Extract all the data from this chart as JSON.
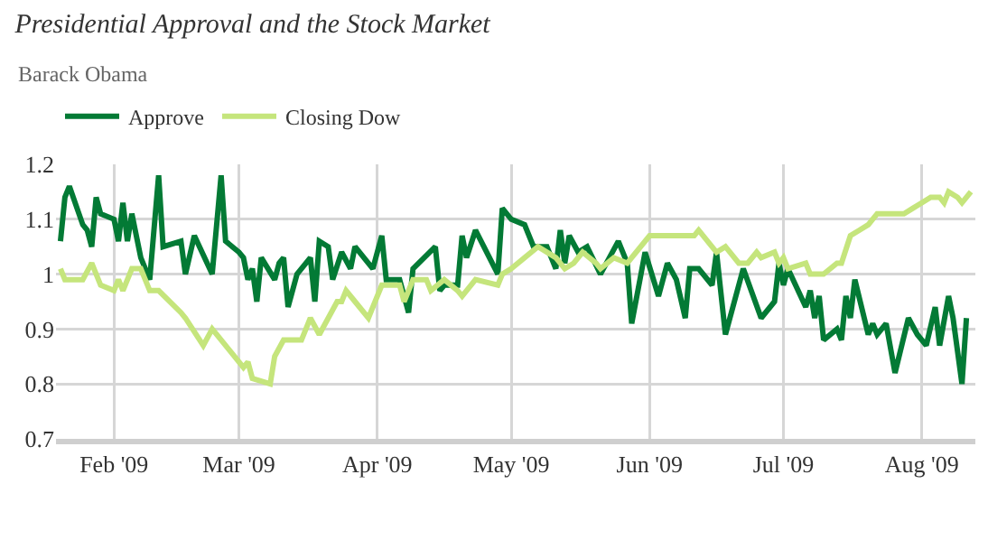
{
  "chart_data": {
    "type": "line",
    "title": "Presidential Approval and the Stock Market",
    "subtitle": "Barack Obama",
    "xlim": [
      "2009-01-19",
      "2009-08-13"
    ],
    "xticks": [
      {
        "value": "2009-02-01",
        "label": "Feb '09"
      },
      {
        "value": "2009-03-01",
        "label": "Mar '09"
      },
      {
        "value": "2009-04-01",
        "label": "Apr '09"
      },
      {
        "value": "2009-05-01",
        "label": "May '09"
      },
      {
        "value": "2009-06-01",
        "label": "Jun '09"
      },
      {
        "value": "2009-07-01",
        "label": "Jul '09"
      },
      {
        "value": "2009-08-01",
        "label": "Aug '09"
      }
    ],
    "ylim": [
      0.7,
      1.2
    ],
    "yticks": [
      0.7,
      0.8,
      0.9,
      1,
      1.1,
      1.2
    ],
    "grid": true,
    "legend": "top left",
    "marker": "none",
    "line_style": "solid",
    "series": [
      {
        "name": "Approve",
        "color": "#037a35",
        "x": [
          "2009-01-20",
          "2009-01-21",
          "2009-01-22",
          "2009-01-25",
          "2009-01-26",
          "2009-01-27",
          "2009-01-28",
          "2009-01-29",
          "2009-02-01",
          "2009-02-02",
          "2009-02-03",
          "2009-02-04",
          "2009-02-05",
          "2009-02-07",
          "2009-02-09",
          "2009-02-11",
          "2009-02-12",
          "2009-02-16",
          "2009-02-17",
          "2009-02-19",
          "2009-02-23",
          "2009-02-25",
          "2009-02-26",
          "2009-03-01",
          "2009-03-02",
          "2009-03-03",
          "2009-03-04",
          "2009-03-05",
          "2009-03-06",
          "2009-03-09",
          "2009-03-10",
          "2009-03-11",
          "2009-03-12",
          "2009-03-14",
          "2009-03-17",
          "2009-03-18",
          "2009-03-19",
          "2009-03-21",
          "2009-03-22",
          "2009-03-24",
          "2009-03-26",
          "2009-03-27",
          "2009-03-31",
          "2009-04-02",
          "2009-04-03",
          "2009-04-06",
          "2009-04-08",
          "2009-04-09",
          "2009-04-14",
          "2009-04-15",
          "2009-04-16",
          "2009-04-19",
          "2009-04-20",
          "2009-04-21",
          "2009-04-23",
          "2009-04-28",
          "2009-04-29",
          "2009-05-01",
          "2009-05-04",
          "2009-05-06",
          "2009-05-09",
          "2009-05-11",
          "2009-05-12",
          "2009-05-13",
          "2009-05-14",
          "2009-05-16",
          "2009-05-18",
          "2009-05-21",
          "2009-05-25",
          "2009-05-27",
          "2009-05-28",
          "2009-05-31",
          "2009-06-03",
          "2009-06-05",
          "2009-06-07",
          "2009-06-09",
          "2009-06-10",
          "2009-06-12",
          "2009-06-15",
          "2009-06-16",
          "2009-06-18",
          "2009-06-22",
          "2009-06-26",
          "2009-06-29",
          "2009-06-30",
          "2009-07-01",
          "2009-07-02",
          "2009-07-06",
          "2009-07-07",
          "2009-07-08",
          "2009-07-09",
          "2009-07-10",
          "2009-07-13",
          "2009-07-14",
          "2009-07-15",
          "2009-07-16",
          "2009-07-17",
          "2009-07-20",
          "2009-07-21",
          "2009-07-22",
          "2009-07-24",
          "2009-07-26",
          "2009-07-29",
          "2009-07-31",
          "2009-08-02",
          "2009-08-04",
          "2009-08-05",
          "2009-08-07",
          "2009-08-08",
          "2009-08-10",
          "2009-08-11"
        ],
        "values": [
          1.06,
          1.14,
          1.16,
          1.09,
          1.08,
          1.05,
          1.14,
          1.11,
          1.1,
          1.06,
          1.13,
          1.06,
          1.11,
          1.03,
          0.99,
          1.18,
          1.05,
          1.06,
          1.0,
          1.07,
          1.0,
          1.18,
          1.06,
          1.04,
          1.03,
          0.99,
          1.01,
          0.95,
          1.03,
          0.99,
          1.02,
          1.03,
          0.94,
          1.0,
          1.03,
          0.95,
          1.06,
          1.05,
          0.99,
          1.04,
          1.01,
          1.05,
          1.01,
          1.07,
          0.99,
          0.99,
          0.93,
          1.01,
          1.05,
          0.97,
          0.98,
          0.98,
          1.07,
          1.03,
          1.08,
          1.0,
          1.12,
          1.1,
          1.09,
          1.05,
          1.05,
          1.01,
          1.08,
          1.02,
          1.07,
          1.04,
          1.05,
          1.0,
          1.06,
          1.02,
          0.91,
          1.04,
          0.96,
          1.02,
          0.99,
          0.92,
          1.01,
          1.01,
          0.98,
          1.04,
          0.89,
          1.01,
          0.92,
          0.95,
          1.02,
          0.98,
          1.01,
          0.94,
          0.97,
          0.92,
          0.96,
          0.88,
          0.9,
          0.88,
          0.96,
          0.92,
          0.99,
          0.89,
          0.91,
          0.89,
          0.91,
          0.82,
          0.92,
          0.89,
          0.87,
          0.94,
          0.87,
          0.96,
          0.92,
          0.8,
          0.92
        ]
      },
      {
        "name": "Closing Dow",
        "color": "#c5e57c",
        "x": [
          "2009-01-20",
          "2009-01-21",
          "2009-01-25",
          "2009-01-27",
          "2009-01-29",
          "2009-02-01",
          "2009-02-02",
          "2009-02-03",
          "2009-02-05",
          "2009-02-07",
          "2009-02-09",
          "2009-02-11",
          "2009-02-16",
          "2009-02-17",
          "2009-02-21",
          "2009-02-23",
          "2009-02-24",
          "2009-02-27",
          "2009-03-02",
          "2009-03-03",
          "2009-03-04",
          "2009-03-08",
          "2009-03-09",
          "2009-03-11",
          "2009-03-15",
          "2009-03-17",
          "2009-03-19",
          "2009-03-23",
          "2009-03-24",
          "2009-03-25",
          "2009-03-27",
          "2009-03-30",
          "2009-04-02",
          "2009-04-06",
          "2009-04-07",
          "2009-04-09",
          "2009-04-12",
          "2009-04-13",
          "2009-04-16",
          "2009-04-19",
          "2009-04-20",
          "2009-04-21",
          "2009-04-23",
          "2009-04-28",
          "2009-04-29",
          "2009-05-01",
          "2009-05-04",
          "2009-05-07",
          "2009-05-11",
          "2009-05-13",
          "2009-05-15",
          "2009-05-17",
          "2009-05-20",
          "2009-05-21",
          "2009-05-24",
          "2009-05-27",
          "2009-06-01",
          "2009-06-05",
          "2009-06-11",
          "2009-06-12",
          "2009-06-16",
          "2009-06-18",
          "2009-06-21",
          "2009-06-23",
          "2009-06-25",
          "2009-06-26",
          "2009-06-29",
          "2009-06-30",
          "2009-07-01",
          "2009-07-02",
          "2009-07-06",
          "2009-07-07",
          "2009-07-10",
          "2009-07-13",
          "2009-07-14",
          "2009-07-16",
          "2009-07-18",
          "2009-07-20",
          "2009-07-22",
          "2009-07-25",
          "2009-07-28",
          "2009-07-30",
          "2009-08-03",
          "2009-08-05",
          "2009-08-06",
          "2009-08-07",
          "2009-08-09",
          "2009-08-10",
          "2009-08-12"
        ],
        "values": [
          1.01,
          0.99,
          0.99,
          1.02,
          0.98,
          0.97,
          0.99,
          0.97,
          1.01,
          1.01,
          0.97,
          0.97,
          0.93,
          0.92,
          0.87,
          0.9,
          0.89,
          0.86,
          0.83,
          0.84,
          0.81,
          0.8,
          0.85,
          0.88,
          0.88,
          0.92,
          0.89,
          0.95,
          0.95,
          0.97,
          0.95,
          0.92,
          0.98,
          0.98,
          0.95,
          0.99,
          0.99,
          0.97,
          0.99,
          0.97,
          0.96,
          0.97,
          0.99,
          0.98,
          1.0,
          1.01,
          1.03,
          1.05,
          1.03,
          1.01,
          1.02,
          1.04,
          1.02,
          1.01,
          1.03,
          1.02,
          1.07,
          1.07,
          1.07,
          1.08,
          1.04,
          1.05,
          1.02,
          1.02,
          1.04,
          1.03,
          1.04,
          1.02,
          1.03,
          1.01,
          1.02,
          1.0,
          1.0,
          1.02,
          1.02,
          1.07,
          1.08,
          1.09,
          1.11,
          1.11,
          1.11,
          1.12,
          1.14,
          1.14,
          1.13,
          1.15,
          1.14,
          1.13,
          1.15
        ]
      }
    ]
  }
}
